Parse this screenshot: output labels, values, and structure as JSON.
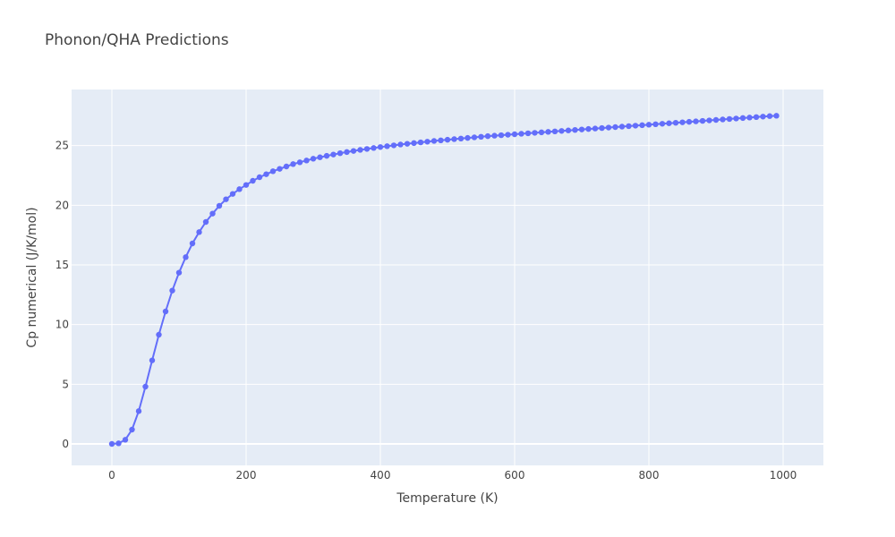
{
  "chart_data": {
    "type": "line",
    "title": "Phonon/QHA Predictions",
    "xlabel": "Temperature (K)",
    "ylabel": "Cp numerical (J/K/mol)",
    "xlim": [
      -60,
      1060
    ],
    "ylim": [
      -1.8,
      29.7
    ],
    "xticks": [
      0,
      200,
      400,
      600,
      800,
      1000
    ],
    "yticks": [
      0,
      5,
      10,
      15,
      20,
      25
    ],
    "grid": true,
    "legend": "none",
    "colors": {
      "line": "#636efa",
      "plot_bg": "#e5ecf6",
      "grid": "#ffffff",
      "text": "#444444"
    },
    "series": [
      {
        "x": [
          0,
          10,
          20,
          30,
          40,
          50,
          60,
          70,
          80,
          90,
          100,
          110,
          120,
          130,
          140,
          150,
          160,
          170,
          180,
          190,
          200,
          210,
          220,
          230,
          240,
          250,
          260,
          270,
          280,
          290,
          300,
          310,
          320,
          330,
          340,
          350,
          360,
          370,
          380,
          390,
          400,
          410,
          420,
          430,
          440,
          450,
          460,
          470,
          480,
          490,
          500,
          510,
          520,
          530,
          540,
          550,
          560,
          570,
          580,
          590,
          600,
          610,
          620,
          630,
          640,
          650,
          660,
          670,
          680,
          690,
          700,
          710,
          720,
          730,
          740,
          750,
          760,
          770,
          780,
          790,
          800,
          810,
          820,
          830,
          840,
          850,
          860,
          870,
          880,
          890,
          900,
          910,
          920,
          930,
          940,
          950,
          960,
          970,
          980,
          990
        ],
        "values": [
          0,
          0.05,
          0.35,
          1.2,
          2.75,
          4.8,
          7.0,
          9.15,
          11.1,
          12.85,
          14.35,
          15.65,
          16.8,
          17.75,
          18.6,
          19.3,
          19.95,
          20.5,
          20.95,
          21.35,
          21.7,
          22.05,
          22.35,
          22.6,
          22.85,
          23.05,
          23.25,
          23.45,
          23.6,
          23.75,
          23.9,
          24.02,
          24.14,
          24.25,
          24.36,
          24.46,
          24.55,
          24.64,
          24.72,
          24.8,
          24.88,
          24.95,
          25.02,
          25.09,
          25.15,
          25.21,
          25.27,
          25.33,
          25.39,
          25.44,
          25.49,
          25.54,
          25.59,
          25.64,
          25.69,
          25.74,
          25.79,
          25.83,
          25.87,
          25.91,
          25.95,
          25.99,
          26.03,
          26.07,
          26.11,
          26.15,
          26.19,
          26.23,
          26.27,
          26.31,
          26.35,
          26.39,
          26.43,
          26.47,
          26.51,
          26.55,
          26.59,
          26.63,
          26.67,
          26.71,
          26.75,
          26.79,
          26.83,
          26.87,
          26.91,
          26.95,
          26.99,
          27.03,
          27.07,
          27.11,
          27.15,
          27.19,
          27.23,
          27.27,
          27.31,
          27.35,
          27.39,
          27.43,
          27.47,
          27.5
        ]
      }
    ]
  }
}
